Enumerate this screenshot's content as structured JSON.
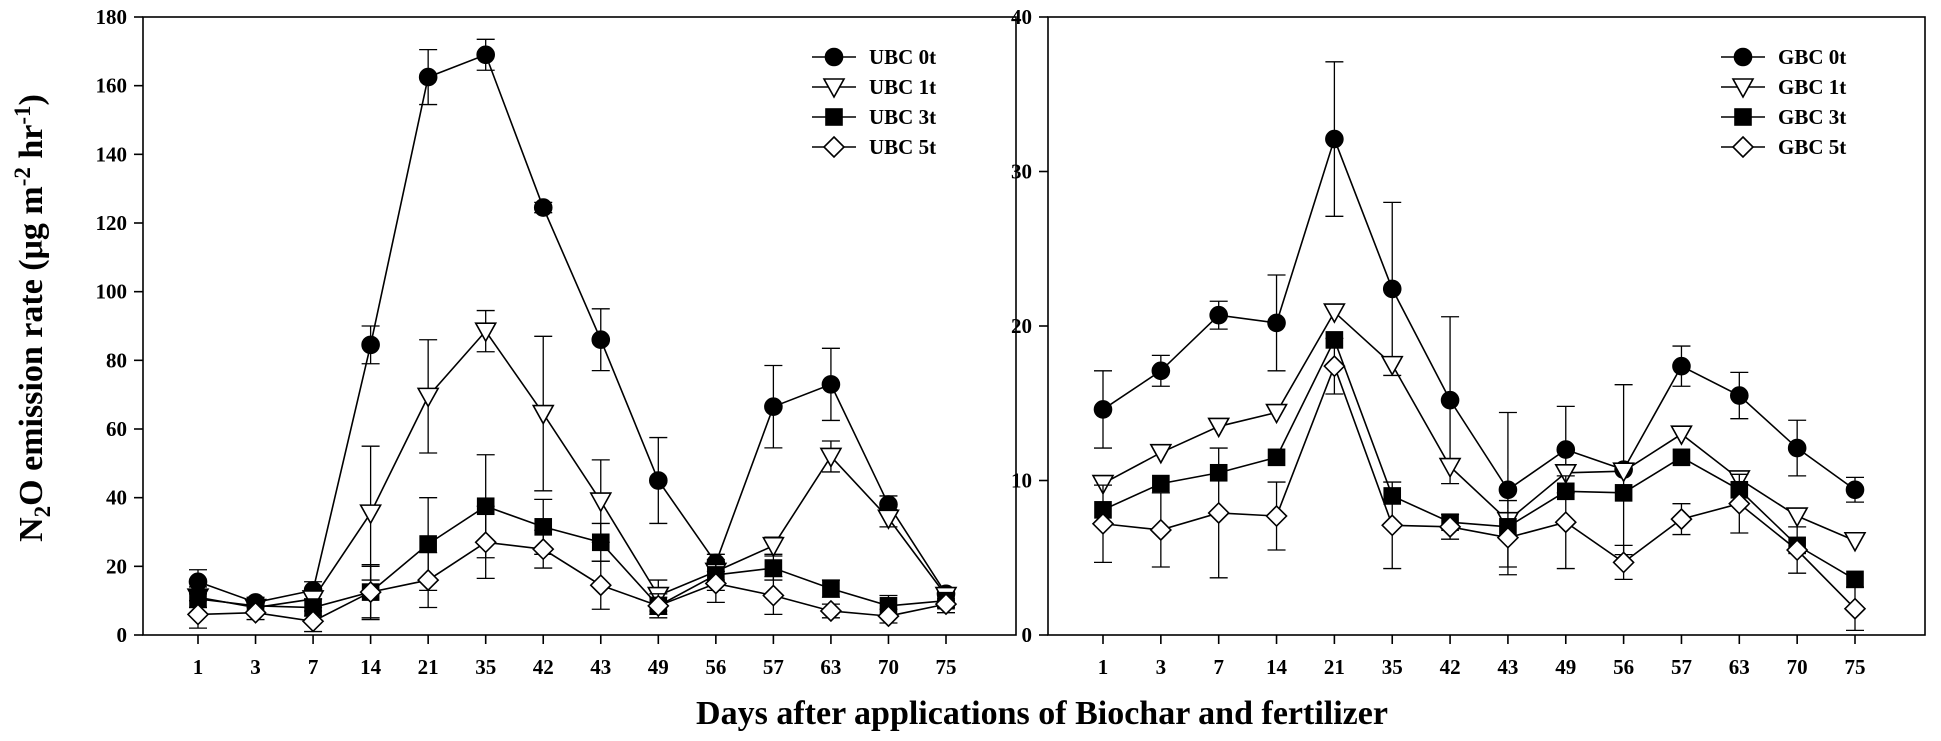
{
  "figure": {
    "ylabel": {
      "prefix": "N",
      "sub": "2",
      "main": "O emission rate (μg m",
      "sup1": "-2",
      "mid": " hr",
      "sup2": "-1",
      "close": ")"
    },
    "xlabel": "Days after applications of Biochar and fertilizer"
  },
  "chart_data": [
    {
      "type": "line",
      "panel": "left",
      "categories": [
        "1",
        "3",
        "7",
        "14",
        "21",
        "35",
        "42",
        "43",
        "49",
        "56",
        "57",
        "63",
        "70",
        "75"
      ],
      "ylim": [
        0,
        180
      ],
      "yticks": [
        0,
        20,
        40,
        60,
        80,
        100,
        120,
        140,
        160,
        180
      ],
      "legend_position": "top-right",
      "series": [
        {
          "name": "UBC 0t",
          "marker": "circle-filled",
          "values": [
            15.5,
            9.5,
            13.0,
            84.5,
            162.5,
            169.0,
            124.5,
            86.0,
            45.0,
            21.0,
            66.5,
            73.0,
            38.0,
            12.0
          ],
          "errors": [
            3.5,
            1.5,
            2.5,
            5.5,
            8.0,
            4.5,
            1.5,
            9.0,
            12.5,
            2.5,
            12.0,
            10.5,
            2.5,
            1.5
          ]
        },
        {
          "name": "UBC 1t",
          "marker": "triangle-down-open",
          "values": [
            11.0,
            8.0,
            10.5,
            35.5,
            69.5,
            88.5,
            64.5,
            39.0,
            11.5,
            18.5,
            26.0,
            52.0,
            34.0,
            11.5
          ],
          "errors": [
            3.0,
            1.5,
            2.5,
            19.5,
            16.5,
            6.0,
            22.5,
            12.0,
            4.5,
            2.5,
            2.5,
            4.5,
            2.5,
            1.5
          ]
        },
        {
          "name": "UBC 3t",
          "marker": "square-filled",
          "values": [
            10.5,
            8.5,
            8.0,
            12.5,
            26.5,
            37.5,
            31.5,
            27.0,
            8.5,
            17.5,
            19.5,
            13.5,
            8.5,
            10.0
          ],
          "errors": [
            2.5,
            1.5,
            2.5,
            8.0,
            13.5,
            15.0,
            8.0,
            5.5,
            2.5,
            4.5,
            3.5,
            2.5,
            3.0,
            2.0
          ]
        },
        {
          "name": "UBC 5t",
          "marker": "diamond-open",
          "values": [
            6.0,
            6.5,
            4.0,
            12.5,
            16.0,
            27.0,
            25.0,
            14.5,
            8.5,
            15.0,
            11.5,
            7.0,
            5.5,
            9.0
          ],
          "errors": [
            4.0,
            2.0,
            3.0,
            7.5,
            8.0,
            10.5,
            5.5,
            7.0,
            3.5,
            5.5,
            5.5,
            2.0,
            2.0,
            2.5
          ]
        }
      ]
    },
    {
      "type": "line",
      "panel": "right",
      "categories": [
        "1",
        "3",
        "7",
        "14",
        "21",
        "35",
        "42",
        "43",
        "49",
        "56",
        "57",
        "63",
        "70",
        "75"
      ],
      "ylim": [
        0,
        40
      ],
      "yticks": [
        0,
        10,
        20,
        30,
        40
      ],
      "legend_position": "top-right",
      "series": [
        {
          "name": "GBC 0t",
          "marker": "circle-filled",
          "values": [
            14.6,
            17.1,
            20.7,
            20.2,
            32.1,
            22.4,
            15.2,
            9.4,
            12.0,
            10.7,
            17.4,
            15.5,
            12.1,
            9.4
          ],
          "errors": [
            2.5,
            1.0,
            0.9,
            3.1,
            5.0,
            5.6,
            5.4,
            5.0,
            2.8,
            5.5,
            1.3,
            1.5,
            1.8,
            0.8
          ]
        },
        {
          "name": "GBC 1t",
          "marker": "triangle-down-open",
          "values": [
            9.8,
            11.8,
            13.5,
            14.4,
            20.9,
            17.5,
            10.9,
            7.4,
            10.5,
            10.6,
            13.0,
            10.1,
            7.7,
            6.1
          ]
        },
        {
          "name": "GBC 3t",
          "marker": "square-filled",
          "values": [
            8.1,
            9.8,
            10.5,
            11.5,
            19.1,
            9.0,
            7.3,
            7.0,
            9.3,
            9.2,
            11.5,
            9.4,
            5.8,
            3.6
          ]
        },
        {
          "name": "GBC 5t",
          "marker": "diamond-open",
          "values": [
            7.2,
            6.8,
            7.9,
            7.7,
            17.4,
            7.1,
            7.0,
            6.3,
            7.3,
            4.7,
            7.5,
            8.5,
            5.5,
            1.7
          ],
          "errors": [
            2.5,
            2.4,
            4.2,
            2.2,
            1.8,
            2.8,
            0.8,
            2.4,
            3.0,
            1.1,
            1.0,
            1.9,
            1.5,
            1.4
          ]
        }
      ]
    }
  ]
}
